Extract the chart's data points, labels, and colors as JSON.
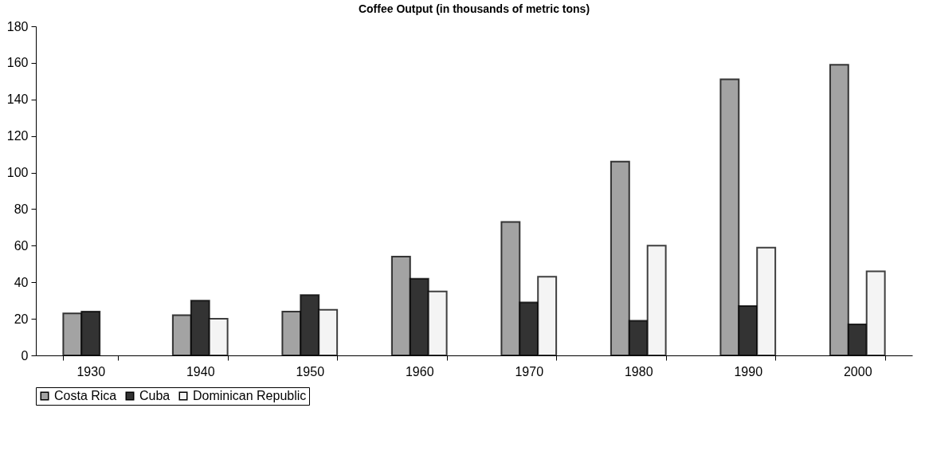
{
  "chart_data": {
    "type": "bar",
    "title": "Coffee Output (in thousands of metric tons)",
    "categories": [
      "1930",
      "1940",
      "1950",
      "1960",
      "1970",
      "1980",
      "1990",
      "2000"
    ],
    "series": [
      {
        "name": "Costa Rica",
        "color": "#a3a3a3",
        "values": [
          23,
          22,
          24,
          54,
          73,
          106,
          151,
          159
        ]
      },
      {
        "name": "Cuba",
        "color": "#333333",
        "values": [
          24,
          30,
          33,
          42,
          29,
          19,
          27,
          17
        ]
      },
      {
        "name": "Dominican Republic",
        "color": "#f4f4f4",
        "values": [
          null,
          20,
          25,
          35,
          43,
          60,
          59,
          46
        ]
      }
    ],
    "ylim": [
      0,
      180
    ],
    "yticks": [
      0,
      20,
      40,
      60,
      80,
      100,
      120,
      140,
      160,
      180
    ],
    "grid": false,
    "legend": "bottom"
  }
}
